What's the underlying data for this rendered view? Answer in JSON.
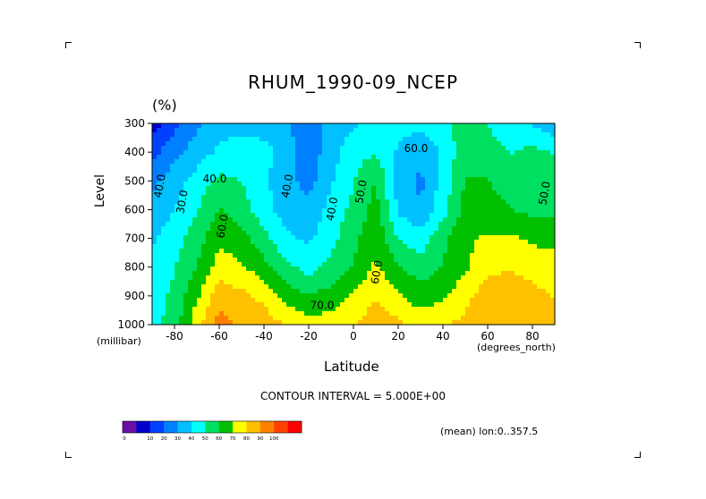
{
  "chart_data": {
    "type": "heatmap",
    "title": "RHUM_1990-09_NCEP",
    "units": "(%)",
    "xlabel": "Latitude",
    "x_units": "(degrees_north)",
    "ylabel": "Level",
    "y_units": "(millibar)",
    "x_ticks": [
      "-80",
      "-60",
      "-40",
      "-20",
      "0",
      "20",
      "40",
      "60",
      "80"
    ],
    "y_ticks": [
      "300",
      "400",
      "500",
      "600",
      "700",
      "800",
      "900",
      "1000"
    ],
    "xlim": [
      -90,
      90
    ],
    "ylim": [
      1000,
      300
    ],
    "lat": [
      -90,
      -80,
      -70,
      -60,
      -50,
      -40,
      -30,
      -20,
      -10,
      0,
      10,
      20,
      30,
      40,
      50,
      60,
      70,
      80,
      90
    ],
    "levels": [
      300,
      400,
      500,
      600,
      700,
      800,
      900,
      1000
    ],
    "values": [
      [
        5,
        15,
        25,
        32,
        33,
        31,
        28,
        20,
        32,
        35,
        42,
        40,
        38,
        42,
        50,
        45,
        40,
        35,
        30
      ],
      [
        15,
        25,
        32,
        38,
        42,
        40,
        32,
        22,
        32,
        42,
        45,
        35,
        30,
        38,
        52,
        50,
        45,
        48,
        45
      ],
      [
        25,
        32,
        40,
        48,
        45,
        38,
        30,
        24,
        35,
        45,
        55,
        32,
        25,
        40,
        55,
        55,
        50,
        50,
        48
      ],
      [
        30,
        36,
        45,
        55,
        50,
        40,
        32,
        30,
        40,
        48,
        58,
        35,
        28,
        42,
        58,
        58,
        55,
        52,
        52
      ],
      [
        35,
        42,
        50,
        62,
        58,
        48,
        38,
        35,
        42,
        52,
        62,
        45,
        40,
        52,
        62,
        65,
        65,
        62,
        60
      ],
      [
        38,
        45,
        55,
        68,
        65,
        58,
        48,
        42,
        48,
        55,
        65,
        55,
        50,
        55,
        62,
        70,
        72,
        70,
        68
      ],
      [
        40,
        48,
        62,
        78,
        75,
        70,
        60,
        55,
        58,
        65,
        72,
        65,
        58,
        62,
        70,
        78,
        78,
        75,
        72
      ],
      [
        42,
        50,
        70,
        85,
        80,
        78,
        72,
        68,
        68,
        72,
        78,
        75,
        70,
        72,
        75,
        82,
        82,
        80,
        78
      ]
    ],
    "contour_labels": [
      "40.0",
      "30.0",
      "40.0",
      "60.0",
      "40.0",
      "40.0",
      "50.0",
      "60.0",
      "60.0",
      "50.0",
      "70.0"
    ],
    "colorbar": {
      "ticks": [
        "0",
        "10",
        "20",
        "30",
        "40",
        "50",
        "60",
        "70",
        "80",
        "90",
        "100"
      ],
      "colors": [
        "#6a0fa8",
        "#0000cc",
        "#0040ff",
        "#0080ff",
        "#00c0ff",
        "#00ffff",
        "#00e060",
        "#00c000",
        "#ffff00",
        "#ffc000",
        "#ff8000",
        "#ff4000",
        "#ff0000"
      ]
    },
    "contour_interval": "CONTOUR INTERVAL = 5.000E+00",
    "note": "(mean) lon:0..357.5"
  }
}
